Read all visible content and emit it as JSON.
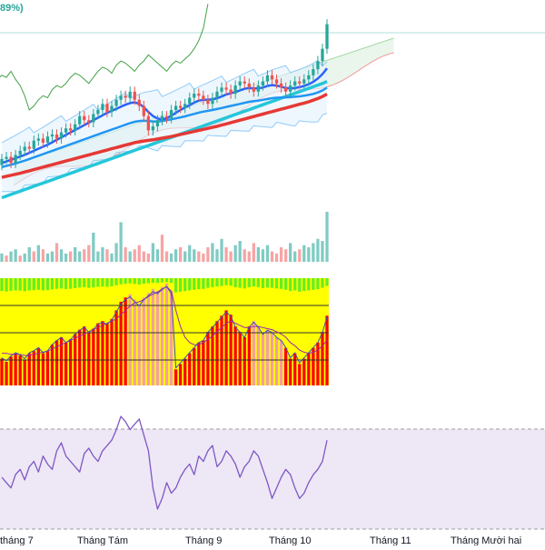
{
  "header": {
    "change_fragment": "89%)"
  },
  "chart_data": {
    "type": "candlestick",
    "x_ticks": [
      "tháng 7",
      "Tháng Tám",
      "Tháng 9",
      "Tháng 10",
      "Tháng 11",
      "Tháng Mười hai"
    ],
    "price": {
      "open": [
        28,
        31,
        32,
        29,
        33,
        35,
        37,
        36,
        40,
        41,
        39,
        42,
        43,
        41,
        44,
        46,
        45,
        48,
        52,
        50,
        49,
        53,
        55,
        58,
        54,
        57,
        60,
        62,
        61,
        64,
        60,
        57,
        52,
        45,
        47,
        50,
        52,
        51,
        55,
        57,
        56,
        58,
        61,
        63,
        62,
        60,
        58,
        61,
        64,
        66,
        65,
        63,
        67,
        69,
        68,
        66,
        64,
        67,
        69,
        72,
        70,
        68,
        66,
        64,
        67,
        69,
        68,
        70,
        72,
        75,
        79,
        85
      ],
      "close": [
        31,
        32,
        29,
        33,
        35,
        37,
        36,
        40,
        41,
        39,
        42,
        43,
        41,
        44,
        46,
        45,
        48,
        52,
        50,
        49,
        53,
        55,
        58,
        54,
        57,
        60,
        62,
        61,
        64,
        60,
        57,
        52,
        45,
        47,
        50,
        52,
        51,
        55,
        57,
        56,
        58,
        61,
        63,
        62,
        60,
        58,
        61,
        64,
        66,
        65,
        63,
        67,
        69,
        68,
        66,
        64,
        67,
        69,
        72,
        70,
        68,
        66,
        64,
        67,
        69,
        68,
        70,
        72,
        75,
        79,
        85,
        97
      ],
      "ma_slow": [
        22,
        22.5,
        23,
        23.5,
        24,
        24.6,
        25.2,
        25.8,
        26.4,
        27,
        27.6,
        28.2,
        28.8,
        29.4,
        30,
        30.6,
        31.2,
        31.8,
        32.4,
        33,
        33.6,
        34.2,
        34.8,
        35.4,
        36,
        36.6,
        37.2,
        37.8,
        38.4,
        39,
        39.4,
        39.8,
        40.1,
        40.4,
        40.8,
        41.2,
        41.6,
        42,
        42.5,
        43,
        43.5,
        44,
        44.5,
        45,
        45.5,
        46,
        46.5,
        47,
        47.6,
        48.2,
        48.8,
        49.4,
        50,
        50.6,
        51.2,
        51.8,
        52.4,
        53,
        53.6,
        54.2,
        54.8,
        55.4,
        56,
        56.6,
        57.2,
        57.8,
        58.4,
        59,
        59.8,
        60.6,
        61.6,
        62.8
      ],
      "ma_mid": [
        27,
        27.6,
        28.2,
        28.8,
        29.5,
        30.2,
        31,
        31.8,
        32.6,
        33.4,
        34.2,
        35,
        35.8,
        36.6,
        37.4,
        38.2,
        39,
        39.8,
        40.6,
        41.4,
        42.2,
        43,
        43.8,
        44.6,
        45.4,
        46.2,
        47,
        47.8,
        48.6,
        49.2,
        49.6,
        49.8,
        49.6,
        49.4,
        49.4,
        49.6,
        50,
        50.4,
        50.9,
        51.4,
        51.9,
        52.5,
        53.1,
        53.7,
        54.2,
        54.6,
        55,
        55.5,
        56,
        56.5,
        57,
        57.5,
        58,
        58.5,
        59,
        59.3,
        59.6,
        60,
        60.4,
        60.8,
        61,
        61.1,
        61.2,
        61.3,
        61.5,
        61.7,
        62,
        62.4,
        62.9,
        63.6,
        64.6,
        66
      ],
      "ma_fast": [
        29,
        29.8,
        30.6,
        31.4,
        32.2,
        33,
        34,
        35,
        36,
        37,
        38,
        39.2,
        40.4,
        41.6,
        42.8,
        44,
        45.2,
        46.4,
        47.6,
        48.8,
        50,
        51.2,
        52.4,
        53.6,
        54.6,
        55.6,
        56.6,
        57.6,
        58.4,
        58.8,
        58,
        56.4,
        54,
        52,
        50.8,
        50.4,
        51,
        52.2,
        53.6,
        55,
        56.2,
        57.4,
        58.6,
        59.6,
        60,
        60,
        60.2,
        60.8,
        61.6,
        62.6,
        63.2,
        63.8,
        64.6,
        65.4,
        65.8,
        65.6,
        65.6,
        66,
        66.8,
        67.2,
        67,
        66.4,
        65.8,
        65.6,
        65.8,
        66.2,
        66.8,
        67.6,
        68.8,
        70.4,
        72.6,
        75.4
      ],
      "trend": [
        12,
        12.8,
        13.6,
        14.4,
        15.2,
        16,
        16.8,
        17.6,
        18.4,
        19.2,
        20,
        20.8,
        21.6,
        22.4,
        23.2,
        24,
        24.8,
        25.6,
        26.4,
        27.2,
        28,
        28.8,
        29.6,
        30.4,
        31.2,
        32,
        32.8,
        33.6,
        34.4,
        35.2,
        36,
        36.8,
        37.6,
        38.4,
        39.2,
        40,
        40.8,
        41.6,
        42.4,
        43.2,
        44,
        44.8,
        45.6,
        46.4,
        47.2,
        48,
        48.8,
        49.6,
        50.4,
        51.2,
        52,
        52.8,
        53.6,
        54.4,
        55.2,
        56,
        56.8,
        57.6,
        58.4,
        59.2,
        60,
        60.8,
        61.6,
        62.4,
        63.2,
        64,
        64.8,
        65.6,
        66.4,
        67.2,
        68,
        69
      ]
    },
    "volume": [
      4,
      3,
      5,
      6,
      3,
      4,
      7,
      5,
      8,
      6,
      4,
      5,
      9,
      6,
      4,
      5,
      7,
      5,
      6,
      8,
      14,
      5,
      7,
      6,
      4,
      9,
      19,
      7,
      5,
      6,
      8,
      5,
      4,
      9,
      6,
      13,
      5,
      4,
      6,
      7,
      5,
      8,
      6,
      5,
      4,
      7,
      9,
      6,
      11,
      7,
      5,
      8,
      10,
      6,
      5,
      9,
      7,
      6,
      8,
      5,
      4,
      7,
      6,
      9,
      5,
      6,
      8,
      7,
      9,
      11,
      10,
      24
    ],
    "volume_colors": [
      "#80cbc4",
      "#f7a4a4",
      "#80cbc4",
      "#80cbc4",
      "#f7a4a4",
      "#80cbc4",
      "#80cbc4",
      "#f7a4a4",
      "#80cbc4",
      "#f7a4a4",
      "#80cbc4",
      "#80cbc4",
      "#f7a4a4",
      "#80cbc4",
      "#80cbc4",
      "#f7a4a4",
      "#80cbc4",
      "#80cbc4",
      "#f7a4a4",
      "#f7a4a4",
      "#80cbc4",
      "#80cbc4",
      "#80cbc4",
      "#f7a4a4",
      "#80cbc4",
      "#80cbc4",
      "#80cbc4",
      "#f7a4a4",
      "#80cbc4",
      "#f7a4a4",
      "#f7a4a4",
      "#f7a4a4",
      "#f7a4a4",
      "#80cbc4",
      "#80cbc4",
      "#f7a4a4",
      "#f7a4a4",
      "#80cbc4",
      "#80cbc4",
      "#f7a4a4",
      "#80cbc4",
      "#80cbc4",
      "#80cbc4",
      "#f7a4a4",
      "#f7a4a4",
      "#f7a4a4",
      "#80cbc4",
      "#80cbc4",
      "#80cbc4",
      "#f7a4a4",
      "#f7a4a4",
      "#80cbc4",
      "#80cbc4",
      "#f7a4a4",
      "#f7a4a4",
      "#f7a4a4",
      "#80cbc4",
      "#80cbc4",
      "#80cbc4",
      "#f7a4a4",
      "#f7a4a4",
      "#f7a4a4",
      "#f7a4a4",
      "#80cbc4",
      "#80cbc4",
      "#f7a4a4",
      "#80cbc4",
      "#80cbc4",
      "#80cbc4",
      "#80cbc4",
      "#80cbc4",
      "#80cbc4"
    ],
    "oscillator": [
      0.25,
      0.22,
      0.27,
      0.3,
      0.28,
      0.24,
      0.3,
      0.32,
      0.35,
      0.3,
      0.32,
      0.38,
      0.42,
      0.45,
      0.4,
      0.43,
      0.48,
      0.52,
      0.55,
      0.5,
      0.53,
      0.58,
      0.6,
      0.58,
      0.62,
      0.7,
      0.78,
      0.82,
      0.85,
      0.8,
      0.76,
      0.82,
      0.86,
      0.9,
      0.88,
      0.92,
      0.95,
      0.88,
      0.15,
      0.2,
      0.25,
      0.3,
      0.35,
      0.4,
      0.42,
      0.5,
      0.55,
      0.6,
      0.65,
      0.7,
      0.66,
      0.55,
      0.5,
      0.45,
      0.55,
      0.6,
      0.55,
      0.48,
      0.52,
      0.5,
      0.45,
      0.42,
      0.35,
      0.25,
      0.3,
      0.2,
      0.25,
      0.3,
      0.35,
      0.4,
      0.5,
      0.65
    ],
    "oscillator_signal": [
      0.3,
      0.3,
      0.29,
      0.29,
      0.29,
      0.28,
      0.28,
      0.29,
      0.3,
      0.31,
      0.32,
      0.34,
      0.36,
      0.38,
      0.4,
      0.42,
      0.44,
      0.46,
      0.48,
      0.5,
      0.52,
      0.54,
      0.56,
      0.58,
      0.6,
      0.62,
      0.66,
      0.7,
      0.74,
      0.77,
      0.78,
      0.8,
      0.83,
      0.85,
      0.87,
      0.9,
      0.92,
      0.88,
      0.7,
      0.55,
      0.45,
      0.4,
      0.38,
      0.38,
      0.4,
      0.43,
      0.46,
      0.5,
      0.54,
      0.58,
      0.6,
      0.58,
      0.56,
      0.54,
      0.54,
      0.55,
      0.55,
      0.54,
      0.53,
      0.52,
      0.5,
      0.48,
      0.45,
      0.4,
      0.37,
      0.33,
      0.31,
      0.3,
      0.31,
      0.33,
      0.37,
      0.42
    ],
    "rsi": [
      52,
      50,
      48,
      53,
      55,
      51,
      56,
      58,
      54,
      60,
      57,
      55,
      62,
      65,
      60,
      58,
      56,
      54,
      61,
      63,
      60,
      58,
      62,
      64,
      66,
      70,
      75,
      73,
      70,
      72,
      74,
      68,
      62,
      48,
      40,
      44,
      50,
      46,
      48,
      52,
      55,
      57,
      53,
      60,
      58,
      62,
      64,
      56,
      58,
      62,
      60,
      57,
      52,
      56,
      58,
      62,
      60,
      55,
      50,
      44,
      48,
      52,
      55,
      53,
      48,
      44,
      46,
      50,
      53,
      55,
      58,
      66
    ],
    "colors": {
      "up": "#26a69a",
      "down": "#ef5350",
      "ma_fast": "#2962ff",
      "ma_mid": "#2196f3",
      "ma_slow": "#e53935",
      "trend": "#26c6da",
      "bb": "#90caf9",
      "kumo": "#e8f5e9",
      "lagging": "#43a047",
      "rsi": "#7e57c2",
      "rsi_bg": "#ede7f6",
      "osc_up": "#ff0000",
      "osc_pale": "#f5a0a0",
      "osc_bg": "#ffff00",
      "osc_top": "#66ee22"
    }
  }
}
